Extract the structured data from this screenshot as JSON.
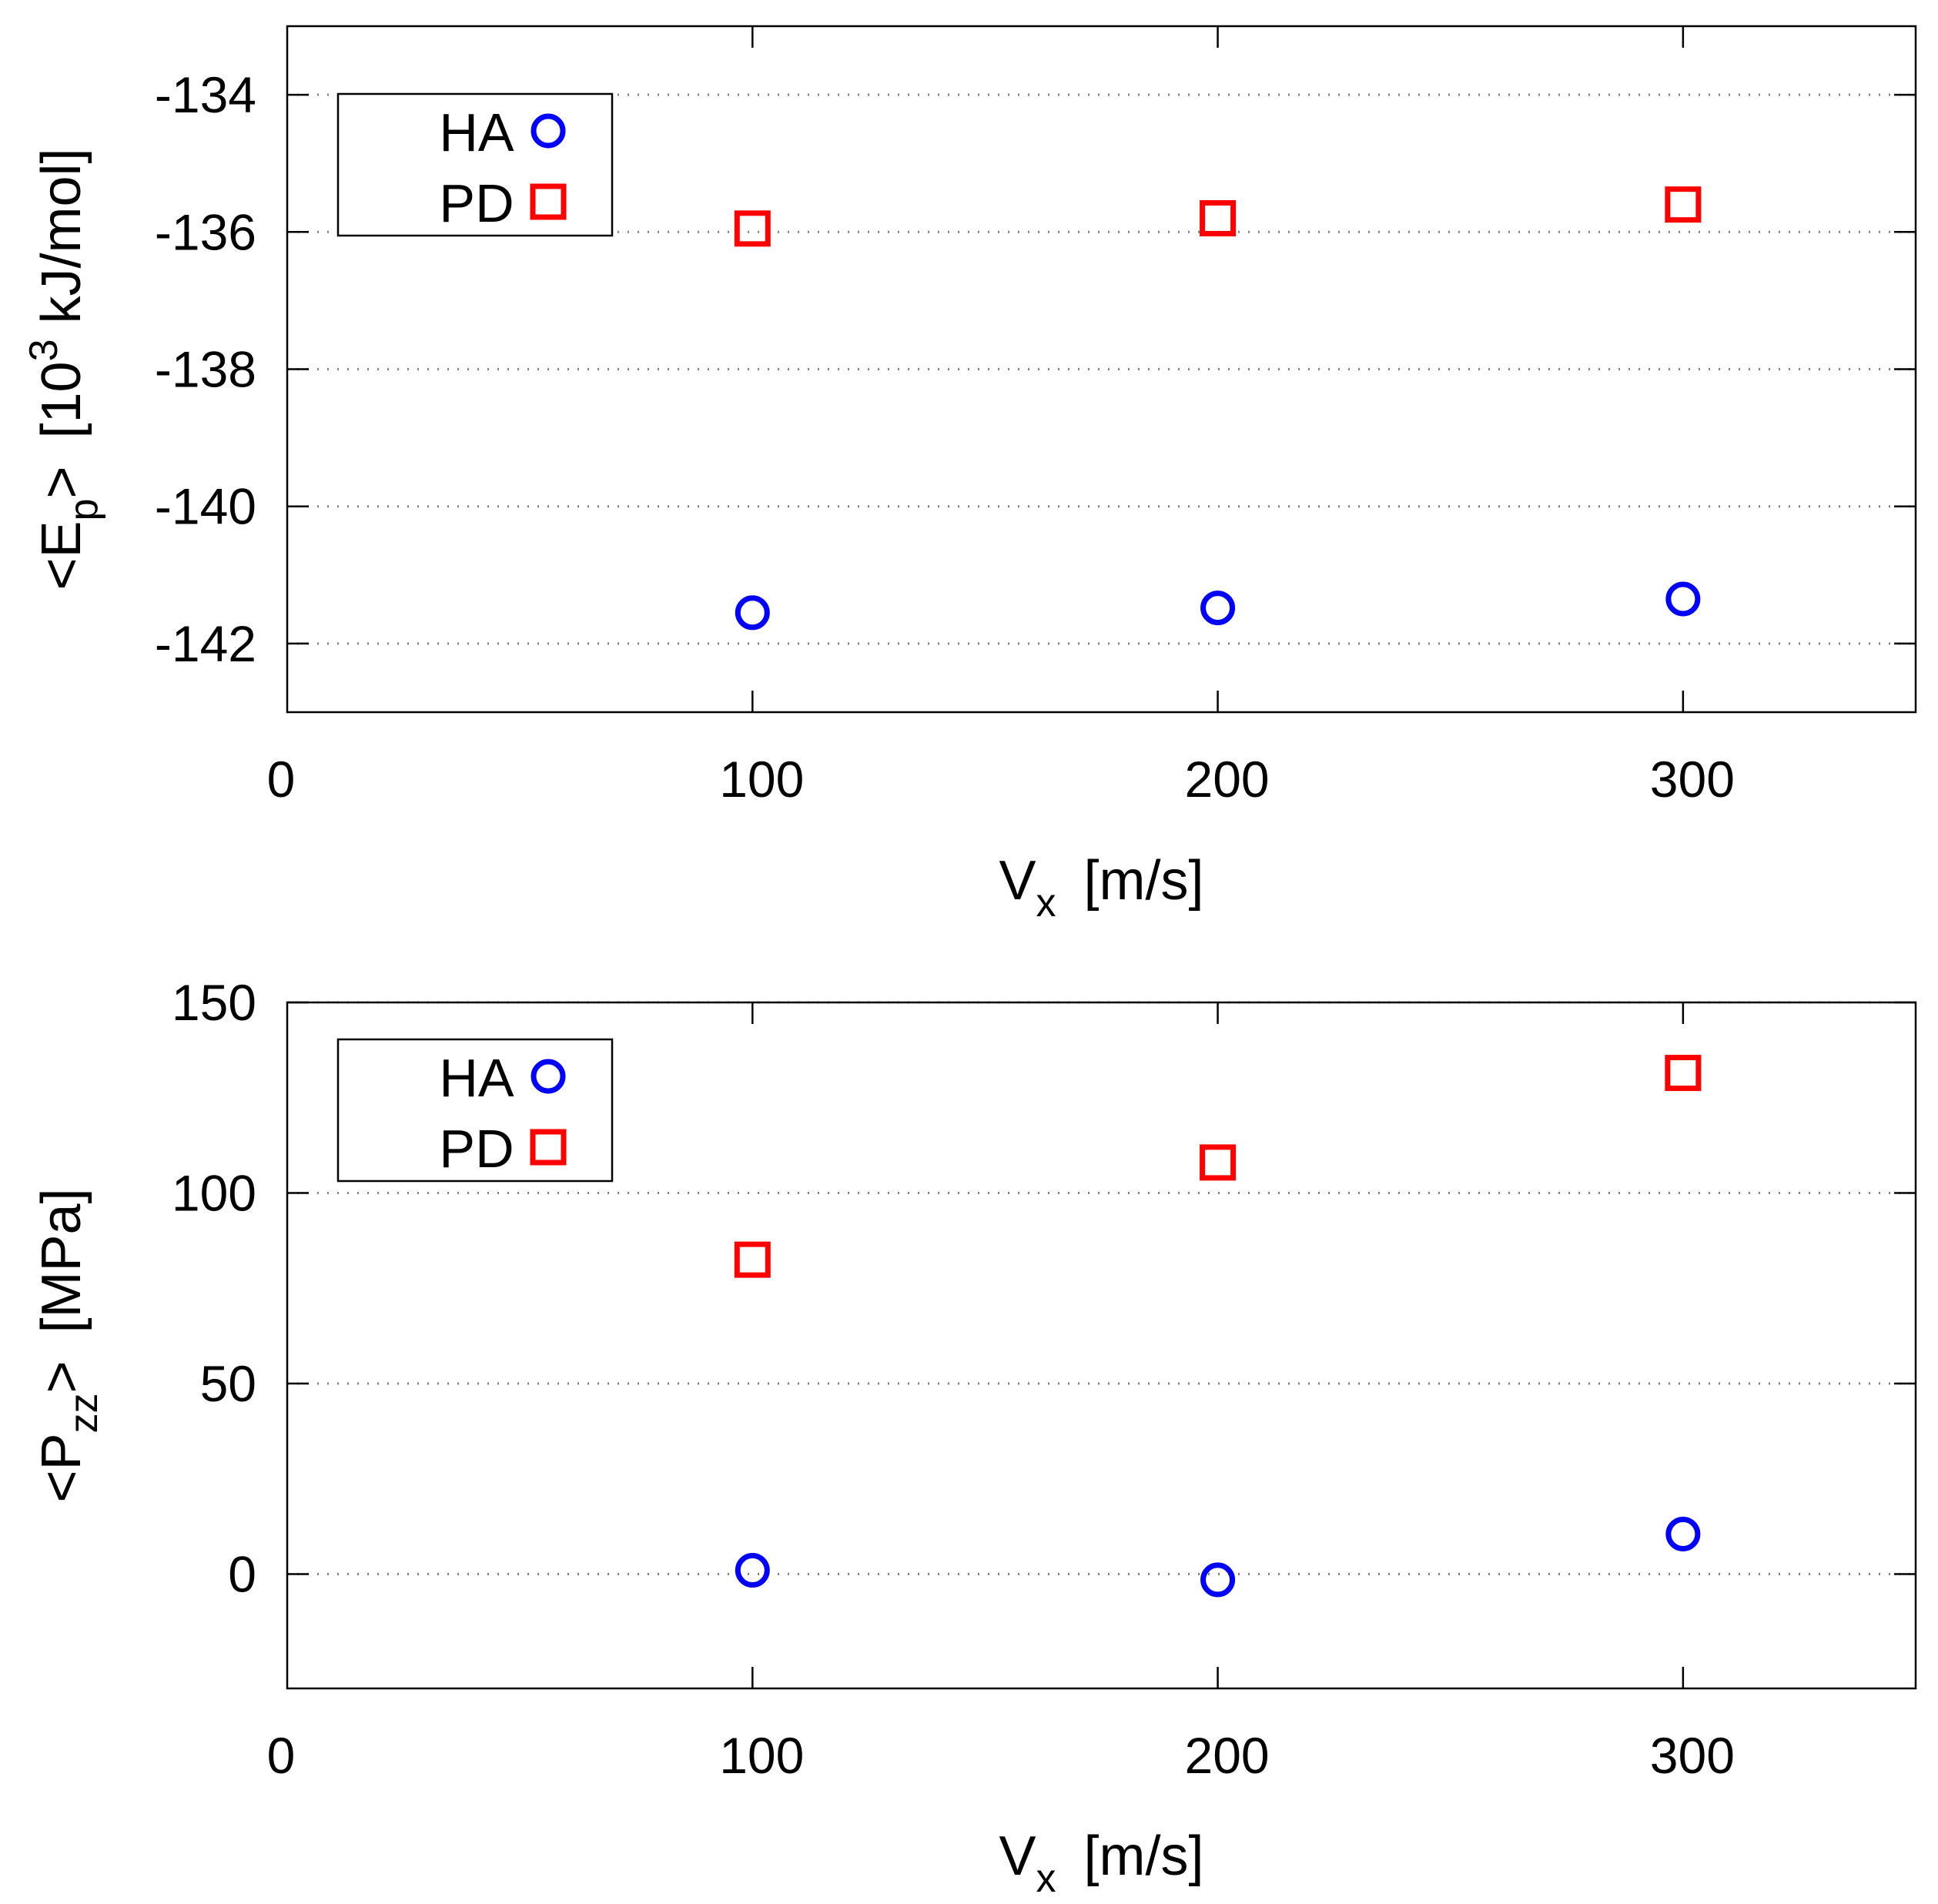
{
  "colors": {
    "ha": "#0000ff",
    "pd": "#ff0000",
    "axis": "#000000",
    "grid": "#808080"
  },
  "chart_data": [
    {
      "type": "scatter",
      "title": "",
      "xlabel": {
        "main": "V",
        "sub": "x",
        "unit": "[m/s]"
      },
      "ylabel": {
        "prefix": "<E",
        "sub": "p",
        "suffix": ">",
        "unit_pre": "[10",
        "sup": "3",
        "unit_post": " kJ/mol]"
      },
      "xlim": [
        0,
        350
      ],
      "ylim": [
        -143,
        -133
      ],
      "xticks": [
        0,
        100,
        200,
        300
      ],
      "xtick_labels": [
        "0",
        "100",
        "200",
        "300"
      ],
      "yticks": [
        -134,
        -136,
        -138,
        -140,
        -142
      ],
      "ytick_labels": [
        "-134",
        "-136",
        "-138",
        "-140",
        "-142"
      ],
      "grid": true,
      "legend_position": "top-left",
      "series": [
        {
          "name": "HA",
          "marker": "circle",
          "x": [
            100,
            200,
            300
          ],
          "y": [
            -141.55,
            -141.48,
            -141.35
          ]
        },
        {
          "name": "PD",
          "marker": "square",
          "x": [
            100,
            200,
            300
          ],
          "y": [
            -135.95,
            -135.8,
            -135.6
          ]
        }
      ]
    },
    {
      "type": "scatter",
      "title": "",
      "xlabel": {
        "main": "V",
        "sub": "x",
        "unit": "[m/s]"
      },
      "ylabel": {
        "prefix": "<P",
        "sub": "zz",
        "suffix": ">",
        "unit_pre": "[MPa]",
        "sup": "",
        "unit_post": ""
      },
      "xlim": [
        0,
        350
      ],
      "ylim": [
        -30,
        150
      ],
      "xticks": [
        0,
        100,
        200,
        300
      ],
      "xtick_labels": [
        "0",
        "100",
        "200",
        "300"
      ],
      "yticks": [
        150,
        100,
        50,
        0
      ],
      "ytick_labels": [
        "150",
        "100",
        "50",
        "0"
      ],
      "grid": true,
      "legend_position": "top-left",
      "series": [
        {
          "name": "HA",
          "marker": "circle",
          "x": [
            100,
            200,
            300
          ],
          "y": [
            1,
            -1.5,
            10.5
          ]
        },
        {
          "name": "PD",
          "marker": "square",
          "x": [
            100,
            200,
            300
          ],
          "y": [
            82.5,
            108,
            131.5
          ]
        }
      ]
    }
  ]
}
